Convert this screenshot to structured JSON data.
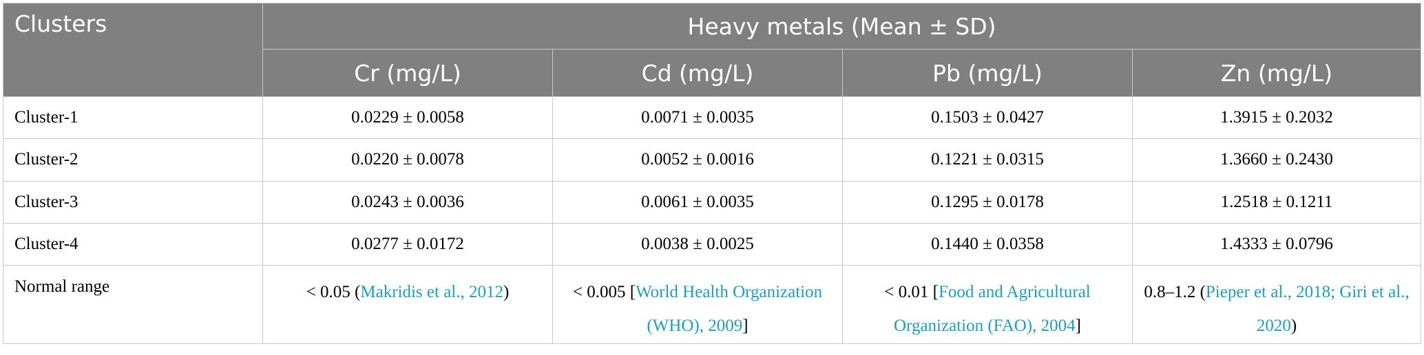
{
  "table": {
    "header": {
      "row_label_header": "Clusters",
      "group_header": "Heavy metals (Mean ± SD)",
      "columns": [
        "Cr (mg/L)",
        "Cd (mg/L)",
        "Pb (mg/L)",
        "Zn (mg/L)"
      ]
    },
    "rows": [
      {
        "label": "Cluster-1",
        "values": [
          "0.0229 ± 0.0058",
          "0.0071 ± 0.0035",
          "0.1503 ± 0.0427",
          "1.3915 ± 0.2032"
        ]
      },
      {
        "label": "Cluster-2",
        "values": [
          "0.0220 ± 0.0078",
          "0.0052 ± 0.0016",
          "0.1221 ± 0.0315",
          "1.3660 ± 0.2430"
        ]
      },
      {
        "label": "Cluster-3",
        "values": [
          "0.0243 ± 0.0036",
          "0.0061 ± 0.0035",
          "0.1295 ± 0.0178",
          "1.2518 ± 0.1211"
        ]
      },
      {
        "label": "Cluster-4",
        "values": [
          "0.0277 ± 0.0172",
          "0.0038 ± 0.0025",
          "0.1440 ± 0.0358",
          "1.4333 ± 0.0796"
        ]
      }
    ],
    "normal_range": {
      "label": "Normal range",
      "cells": [
        {
          "value": "< 0.05 (",
          "citation": "Makridis et al., 2012",
          "close": ")"
        },
        {
          "value": "< 0.005 [",
          "citation": "World Health Organization (WHO), 2009",
          "close": "]"
        },
        {
          "value": "< 0.01 [",
          "citation": "Food and Agricultural Organization (FAO), 2004",
          "close": "]"
        },
        {
          "value": "0.8–1.2 (",
          "citation": "Pieper et al., 2018; Giri et al., 2020",
          "close": ")"
        }
      ]
    }
  },
  "colors": {
    "header_bg": "#808080",
    "header_text": "#ffffff",
    "citation_link": "#1a9fc0",
    "grid_line": "#c8c8c8"
  }
}
